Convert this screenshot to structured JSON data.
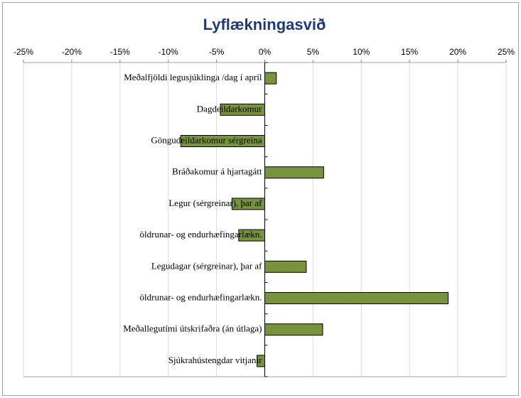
{
  "chart_data": {
    "type": "hbar",
    "title": "Lyflækningasvið",
    "categories": [
      "Meðalfjöldi legusjúklinga /dag í apríl",
      "Dagdeildarkomur",
      "Göngudeildarkomur sérgreina",
      "Bráðakomur á hjartagátt",
      "Legur (sérgreinar), þar af",
      "öldrunar- og endurhæfingarlækn.",
      "Legudagar (sérgreinar), þar af",
      "öldrunar- og endurhæfingarlækn.",
      "Meðallegutími útskrifaðra (án útlaga)",
      "Sjúkrahústengdar vitjanir"
    ],
    "values": [
      1.2,
      -4.6,
      -8.7,
      6.1,
      -3.4,
      -2.7,
      4.3,
      19.0,
      6.0,
      -0.8
    ],
    "color": "#77933c",
    "xlim": [
      -25,
      25
    ],
    "xticks": [
      {
        "value": -25,
        "label": "-25%"
      },
      {
        "value": -20,
        "label": "-20%"
      },
      {
        "value": -15,
        "label": "-15%"
      },
      {
        "value": -10,
        "label": "-10%"
      },
      {
        "value": -5,
        "label": "-5%"
      },
      {
        "value": 0,
        "label": "0%"
      },
      {
        "value": 5,
        "label": "5%"
      },
      {
        "value": 10,
        "label": "10%"
      },
      {
        "value": 15,
        "label": "15%"
      },
      {
        "value": 20,
        "label": "20%"
      },
      {
        "value": 25,
        "label": "25%"
      }
    ],
    "grid": true
  }
}
